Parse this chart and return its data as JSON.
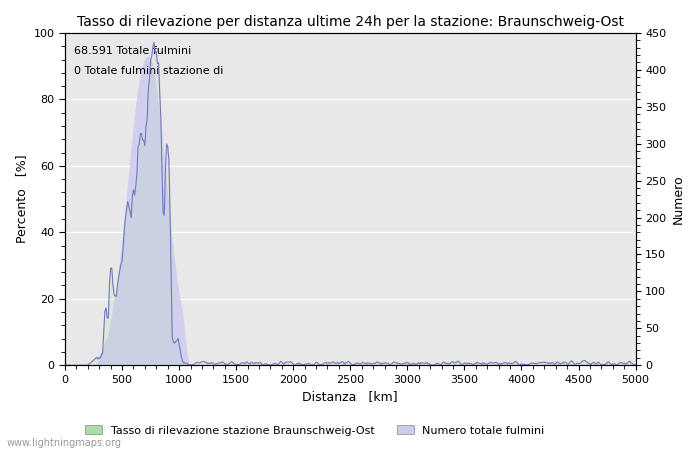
{
  "title": "Tasso di rilevazione per distanza ultime 24h per la stazione: Braunschweig-Ost",
  "xlabel": "Distanza   [km]",
  "ylabel_left": "Percento   [%]",
  "ylabel_right": "Numero",
  "annotation_line1": "68.591 Totale fulmini",
  "annotation_line2": "0 Totale fulmini stazione di",
  "xlim": [
    0,
    5000
  ],
  "ylim_left": [
    0,
    100
  ],
  "ylim_right": [
    0,
    450
  ],
  "yticks_left": [
    0,
    20,
    40,
    60,
    80,
    100
  ],
  "yticks_right": [
    0,
    50,
    100,
    150,
    200,
    250,
    300,
    350,
    400,
    450
  ],
  "xticks": [
    0,
    500,
    1000,
    1500,
    2000,
    2500,
    3000,
    3500,
    4000,
    4500,
    5000
  ],
  "legend_label1": "Tasso di rilevazione stazione Braunschweig-Ost",
  "legend_label2": "Numero totale fulmini",
  "legend_color1": "#aaddaa",
  "legend_color2": "#ccccee",
  "fill_color_blue": "#d0d0ee",
  "line_color_blue": "#7777bb",
  "bg_color": "#e8e8e8",
  "grid_color": "white",
  "watermark": "www.lightningmaps.org",
  "title_fontsize": 10,
  "label_fontsize": 9,
  "tick_fontsize": 8,
  "annotation_fontsize": 8,
  "minor_tick_count": 4
}
